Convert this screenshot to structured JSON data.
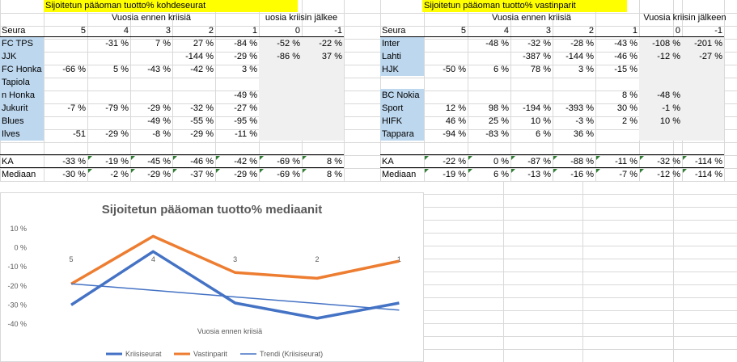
{
  "left": {
    "title": "Sijoitetun pääoman tuotto% kohdeseurat",
    "before_label": "Vuosia ennen kriisiä",
    "after_label": "uosia kriisin jälkee",
    "header": [
      "Seura",
      "5",
      "4",
      "3",
      "2",
      "1",
      "0",
      "-1"
    ],
    "rows": [
      {
        "club": "FC TPS",
        "v": [
          "",
          "-31 %",
          "7 %",
          "27 %",
          "-84 %",
          "-52 %",
          "-22 %"
        ]
      },
      {
        "club": "JJK",
        "v": [
          "",
          "",
          "",
          "-144 %",
          "-29 %",
          "-86 %",
          "37 %"
        ]
      },
      {
        "club": "FC Honka",
        "v": [
          "-66 %",
          "5 %",
          "-43 %",
          "-42 %",
          "3 %",
          "",
          ""
        ]
      },
      {
        "club": "Tapiola",
        "v": [
          "",
          "",
          "",
          "",
          "",
          "",
          ""
        ]
      },
      {
        "club": "n Honka",
        "v": [
          "",
          "",
          "",
          "",
          "-49 %",
          "",
          ""
        ]
      },
      {
        "club": "Jukurit",
        "v": [
          "-7 %",
          "-79 %",
          "-29 %",
          "-32 %",
          "-27 %",
          "",
          ""
        ]
      },
      {
        "club": "Blues",
        "v": [
          "",
          "",
          "-49 %",
          "-55 %",
          "-95 %",
          "",
          ""
        ]
      },
      {
        "club": "Ilves",
        "v": [
          "-51",
          "-29 %",
          "-8 %",
          "-29 %",
          "-11 %",
          "",
          ""
        ]
      }
    ],
    "ka": {
      "label": "KA",
      "v": [
        "-33 %",
        "-19 %",
        "-45 %",
        "-46 %",
        "-42 %",
        "-69 %",
        "8 %"
      ]
    },
    "median": {
      "label": "Mediaan",
      "v": [
        "-30 %",
        "-2 %",
        "-29 %",
        "-37 %",
        "-29 %",
        "-69 %",
        "8 %"
      ]
    }
  },
  "right": {
    "title": "Sijoitetun pääoman tuotto% vastinparit",
    "before_label": "Vuosia ennen kriisiä",
    "after_label": "Vuosia kriisin jälkeen",
    "header": [
      "Seura",
      "5",
      "4",
      "3",
      "2",
      "1",
      "0",
      "-1"
    ],
    "rows": [
      {
        "club": "Inter",
        "v": [
          "",
          "-48 %",
          "-32 %",
          "-28 %",
          "-43 %",
          "-108 %",
          "-201 %"
        ]
      },
      {
        "club": "Lahti",
        "v": [
          "",
          "",
          "-387 %",
          "-144 %",
          "-46 %",
          "-12 %",
          "-27 %"
        ]
      },
      {
        "club": "HJK",
        "v": [
          "-50 %",
          "6 %",
          "78 %",
          "3 %",
          "-15 %",
          "",
          ""
        ]
      },
      {
        "club": "",
        "v": [
          "",
          "",
          "",
          "",
          "",
          "",
          ""
        ]
      },
      {
        "club": "BC Nokia",
        "v": [
          "",
          "",
          "",
          "",
          "8 %",
          "-48 %",
          ""
        ]
      },
      {
        "club": "Sport",
        "v": [
          "12 %",
          "98 %",
          "-194 %",
          "-393 %",
          "30 %",
          "-1 %",
          ""
        ]
      },
      {
        "club": "HIFK",
        "v": [
          "46 %",
          "25 %",
          "10 %",
          "-3 %",
          "2 %",
          "10 %",
          ""
        ]
      },
      {
        "club": "Tappara",
        "v": [
          "-94 %",
          "-83 %",
          "6 %",
          "36 %",
          "",
          "",
          ""
        ]
      }
    ],
    "ka": {
      "label": "KA",
      "v": [
        "-22 %",
        "0 %",
        "-87 %",
        "-88 %",
        "-11 %",
        "-32 %",
        "-114 %"
      ]
    },
    "median": {
      "label": "Mediaan",
      "v": [
        "-19 %",
        "6 %",
        "-13 %",
        "-16 %",
        "-7 %",
        "-12 %",
        "-114 %"
      ]
    }
  },
  "chart_data": {
    "type": "line",
    "title": "Sijoitetun pääoman tuotto% mediaanit",
    "xlabel": "Vuosia ennen kriisiä",
    "ylabel": "",
    "categories": [
      "5",
      "4",
      "3",
      "2",
      "1"
    ],
    "ylim": [
      -40,
      10
    ],
    "yticks": [
      "10 %",
      "0 %",
      "-10 %",
      "-20 %",
      "-30 %",
      "-40 %"
    ],
    "series": [
      {
        "name": "Kriisiseurat",
        "color": "#4472c4",
        "values": [
          -30,
          -2,
          -29,
          -37,
          -29
        ]
      },
      {
        "name": "Vastinparit",
        "color": "#ed7d31",
        "values": [
          -19,
          6,
          -13,
          -16,
          -7
        ]
      },
      {
        "name": "Trendi (Kriisiseurat)",
        "color": "#4472c4",
        "values": [
          -18.9,
          -22.3,
          -25.8,
          -29.2,
          -32.7
        ]
      }
    ],
    "legend_position": "bottom"
  }
}
